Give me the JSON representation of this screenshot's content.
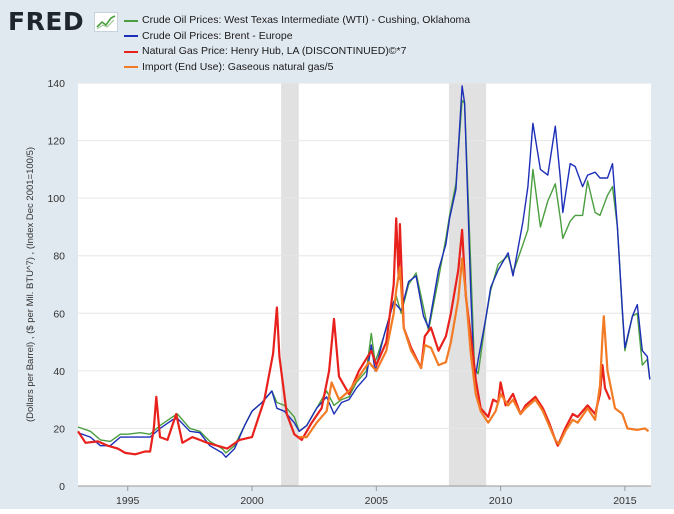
{
  "branding": {
    "logo_text": "FRED",
    "logo_mark_icon": "chart-trend-icon"
  },
  "colors": {
    "frame_bg": "#e1e9f0",
    "plot_bg": "#ffffff",
    "recession": "#e1e1e1",
    "grid": "#e6e6e6",
    "wti": "#4a9e3f",
    "brent": "#1d2fb8",
    "henry_hub": "#e8211c",
    "import_gas": "#f37b25"
  },
  "chart_data": {
    "type": "line",
    "title": "",
    "xlabel": "",
    "ylabel": "(Dollars per Barrel) , ($ per Mil. BTU^7) , (Index Dec 2001=100/5)",
    "xlim": [
      1993.0,
      2016.05
    ],
    "ylim": [
      0,
      140
    ],
    "y_ticks": [
      "0",
      "20",
      "40",
      "60",
      "80",
      "100",
      "120",
      "140"
    ],
    "y_tick_values": [
      0,
      20,
      40,
      60,
      80,
      100,
      120,
      140
    ],
    "x_ticks": [
      "1995",
      "2000",
      "2005",
      "2010",
      "2015"
    ],
    "x_tick_values": [
      1995,
      2000,
      2005,
      2010,
      2015
    ],
    "grid": true,
    "legend_position": "top",
    "recessions": [
      {
        "start": 2001.17,
        "end": 2001.88
      },
      {
        "start": 2007.92,
        "end": 2009.42
      }
    ],
    "series": [
      {
        "name": "Crude Oil Prices: West Texas Intermediate (WTI) - Cushing, Oklahoma",
        "color": "#4a9e3f",
        "points": [
          [
            1993.0,
            20.5
          ],
          [
            1993.5,
            19
          ],
          [
            1993.9,
            16
          ],
          [
            1994.3,
            15.5
          ],
          [
            1994.7,
            18
          ],
          [
            1995.0,
            18
          ],
          [
            1995.5,
            18.5
          ],
          [
            1995.9,
            18
          ],
          [
            1996.3,
            21
          ],
          [
            1996.8,
            24
          ],
          [
            1997.0,
            25
          ],
          [
            1997.5,
            20
          ],
          [
            1997.9,
            19
          ],
          [
            1998.3,
            15.5
          ],
          [
            1998.8,
            13
          ],
          [
            1998.95,
            11.5
          ],
          [
            1999.3,
            14
          ],
          [
            1999.7,
            21
          ],
          [
            2000.0,
            26
          ],
          [
            2000.4,
            29
          ],
          [
            2000.8,
            33
          ],
          [
            2001.0,
            29
          ],
          [
            2001.3,
            28
          ],
          [
            2001.7,
            24
          ],
          [
            2001.9,
            19
          ],
          [
            2002.2,
            21
          ],
          [
            2002.6,
            27
          ],
          [
            2003.0,
            33
          ],
          [
            2003.3,
            28
          ],
          [
            2003.6,
            30
          ],
          [
            2003.9,
            31
          ],
          [
            2004.2,
            36
          ],
          [
            2004.6,
            40
          ],
          [
            2004.8,
            53
          ],
          [
            2004.95,
            43
          ],
          [
            2005.3,
            52
          ],
          [
            2005.7,
            64
          ],
          [
            2005.8,
            66
          ],
          [
            2006.0,
            60
          ],
          [
            2006.3,
            70
          ],
          [
            2006.6,
            74
          ],
          [
            2006.9,
            62
          ],
          [
            2007.1,
            54
          ],
          [
            2007.5,
            72
          ],
          [
            2007.8,
            86
          ],
          [
            2007.95,
            94
          ],
          [
            2008.2,
            105
          ],
          [
            2008.45,
            134
          ],
          [
            2008.55,
            133
          ],
          [
            2008.8,
            76
          ],
          [
            2008.95,
            41
          ],
          [
            2009.1,
            39
          ],
          [
            2009.4,
            58
          ],
          [
            2009.6,
            68
          ],
          [
            2009.9,
            77
          ],
          [
            2010.3,
            80
          ],
          [
            2010.5,
            74
          ],
          [
            2010.9,
            84
          ],
          [
            2011.1,
            89
          ],
          [
            2011.3,
            110
          ],
          [
            2011.6,
            90
          ],
          [
            2011.9,
            99
          ],
          [
            2012.2,
            105
          ],
          [
            2012.4,
            93
          ],
          [
            2012.5,
            86
          ],
          [
            2012.8,
            92
          ],
          [
            2013.0,
            94
          ],
          [
            2013.3,
            94
          ],
          [
            2013.5,
            106
          ],
          [
            2013.8,
            95
          ],
          [
            2014.0,
            94
          ],
          [
            2014.3,
            101
          ],
          [
            2014.5,
            104
          ],
          [
            2014.7,
            90
          ],
          [
            2014.9,
            60
          ],
          [
            2015.0,
            47
          ],
          [
            2015.3,
            59
          ],
          [
            2015.5,
            60
          ],
          [
            2015.7,
            42
          ],
          [
            2015.9,
            44
          ],
          [
            2016.0,
            37
          ]
        ]
      },
      {
        "name": "Crude Oil Prices: Brent - Europe",
        "color": "#1d2fb8",
        "points": [
          [
            1993.0,
            18.5
          ],
          [
            1993.5,
            17
          ],
          [
            1993.9,
            14
          ],
          [
            1994.3,
            14
          ],
          [
            1994.7,
            17
          ],
          [
            1995.0,
            17
          ],
          [
            1995.5,
            17
          ],
          [
            1995.9,
            17
          ],
          [
            1996.3,
            20
          ],
          [
            1996.8,
            23
          ],
          [
            1997.0,
            23.5
          ],
          [
            1997.5,
            19
          ],
          [
            1997.9,
            18.5
          ],
          [
            1998.3,
            14
          ],
          [
            1998.8,
            11.5
          ],
          [
            1998.95,
            10
          ],
          [
            1999.3,
            13
          ],
          [
            1999.7,
            21
          ],
          [
            2000.0,
            26
          ],
          [
            2000.4,
            29
          ],
          [
            2000.8,
            33
          ],
          [
            2001.0,
            27
          ],
          [
            2001.3,
            26
          ],
          [
            2001.7,
            22
          ],
          [
            2001.9,
            19
          ],
          [
            2002.2,
            21
          ],
          [
            2002.6,
            27
          ],
          [
            2003.0,
            31
          ],
          [
            2003.3,
            25
          ],
          [
            2003.6,
            29
          ],
          [
            2003.9,
            30
          ],
          [
            2004.2,
            34
          ],
          [
            2004.6,
            38
          ],
          [
            2004.8,
            49
          ],
          [
            2004.95,
            40
          ],
          [
            2005.3,
            52
          ],
          [
            2005.7,
            64
          ],
          [
            2005.8,
            63
          ],
          [
            2006.0,
            61
          ],
          [
            2006.3,
            71
          ],
          [
            2006.6,
            73
          ],
          [
            2006.9,
            59
          ],
          [
            2007.1,
            55
          ],
          [
            2007.5,
            75
          ],
          [
            2007.8,
            84
          ],
          [
            2007.95,
            93
          ],
          [
            2008.2,
            103
          ],
          [
            2008.45,
            139
          ],
          [
            2008.55,
            133
          ],
          [
            2008.8,
            67
          ],
          [
            2008.95,
            36
          ],
          [
            2009.1,
            44
          ],
          [
            2009.4,
            58
          ],
          [
            2009.6,
            69
          ],
          [
            2009.9,
            75
          ],
          [
            2010.3,
            81
          ],
          [
            2010.5,
            73
          ],
          [
            2010.9,
            92
          ],
          [
            2011.1,
            104
          ],
          [
            2011.3,
            126
          ],
          [
            2011.6,
            110
          ],
          [
            2011.9,
            108
          ],
          [
            2012.2,
            125
          ],
          [
            2012.4,
            107
          ],
          [
            2012.5,
            95
          ],
          [
            2012.8,
            112
          ],
          [
            2013.0,
            111
          ],
          [
            2013.3,
            104
          ],
          [
            2013.5,
            108
          ],
          [
            2013.8,
            109
          ],
          [
            2014.0,
            107
          ],
          [
            2014.3,
            107
          ],
          [
            2014.5,
            112
          ],
          [
            2014.7,
            90
          ],
          [
            2014.9,
            61
          ],
          [
            2015.0,
            48
          ],
          [
            2015.3,
            59
          ],
          [
            2015.5,
            63
          ],
          [
            2015.7,
            47
          ],
          [
            2015.9,
            45
          ],
          [
            2016.0,
            37
          ]
        ]
      },
      {
        "name": "Natural Gas Price: Henry Hub, LA (DISCONTINUED)©*7",
        "color": "#e8211c",
        "points": [
          [
            1993.0,
            19
          ],
          [
            1993.3,
            15
          ],
          [
            1993.8,
            15.5
          ],
          [
            1994.2,
            14
          ],
          [
            1994.6,
            13
          ],
          [
            1994.9,
            11.5
          ],
          [
            1995.3,
            11
          ],
          [
            1995.7,
            12
          ],
          [
            1995.9,
            12
          ],
          [
            1996.05,
            20
          ],
          [
            1996.15,
            31
          ],
          [
            1996.3,
            17
          ],
          [
            1996.6,
            16
          ],
          [
            1996.95,
            25
          ],
          [
            1997.2,
            15
          ],
          [
            1997.6,
            17
          ],
          [
            1997.9,
            16
          ],
          [
            1998.2,
            15
          ],
          [
            1998.6,
            14
          ],
          [
            1999.0,
            13
          ],
          [
            1999.5,
            16
          ],
          [
            2000.0,
            17
          ],
          [
            2000.5,
            30
          ],
          [
            2000.85,
            46
          ],
          [
            2001.0,
            62
          ],
          [
            2001.1,
            45
          ],
          [
            2001.4,
            25
          ],
          [
            2001.7,
            18
          ],
          [
            2002.0,
            16
          ],
          [
            2002.4,
            22
          ],
          [
            2002.8,
            27
          ],
          [
            2003.1,
            40
          ],
          [
            2003.3,
            58
          ],
          [
            2003.5,
            38
          ],
          [
            2003.9,
            32
          ],
          [
            2004.3,
            40
          ],
          [
            2004.8,
            47
          ],
          [
            2005.0,
            42
          ],
          [
            2005.4,
            50
          ],
          [
            2005.7,
            70
          ],
          [
            2005.8,
            93
          ],
          [
            2005.9,
            72
          ],
          [
            2005.95,
            91
          ],
          [
            2006.1,
            55
          ],
          [
            2006.4,
            48
          ],
          [
            2006.8,
            41
          ],
          [
            2006.95,
            52
          ],
          [
            2007.2,
            55
          ],
          [
            2007.5,
            47
          ],
          [
            2007.8,
            52
          ],
          [
            2008.0,
            60
          ],
          [
            2008.3,
            75
          ],
          [
            2008.45,
            89
          ],
          [
            2008.6,
            66
          ],
          [
            2008.9,
            45
          ],
          [
            2009.0,
            37
          ],
          [
            2009.2,
            27
          ],
          [
            2009.5,
            24
          ],
          [
            2009.7,
            30
          ],
          [
            2009.9,
            29
          ],
          [
            2010.0,
            36
          ],
          [
            2010.2,
            28
          ],
          [
            2010.5,
            32
          ],
          [
            2010.8,
            25
          ],
          [
            2011.0,
            28
          ],
          [
            2011.4,
            31
          ],
          [
            2011.7,
            27
          ],
          [
            2011.95,
            22
          ],
          [
            2012.2,
            16
          ],
          [
            2012.3,
            14
          ],
          [
            2012.6,
            20
          ],
          [
            2012.9,
            25
          ],
          [
            2013.1,
            24
          ],
          [
            2013.5,
            28
          ],
          [
            2013.8,
            25
          ],
          [
            2014.0,
            32
          ],
          [
            2014.1,
            42
          ],
          [
            2014.2,
            34
          ],
          [
            2014.4,
            30
          ]
        ]
      },
      {
        "name": "Import (End Use): Gaseous natural gas/5",
        "color": "#f37b25",
        "points": [
          [
            2001.9,
            17
          ],
          [
            2002.2,
            17
          ],
          [
            2002.6,
            22
          ],
          [
            2003.0,
            26
          ],
          [
            2003.2,
            36
          ],
          [
            2003.5,
            30
          ],
          [
            2003.9,
            33
          ],
          [
            2004.3,
            38
          ],
          [
            2004.7,
            43
          ],
          [
            2005.0,
            40
          ],
          [
            2005.4,
            47
          ],
          [
            2005.7,
            60
          ],
          [
            2005.8,
            68
          ],
          [
            2005.95,
            76
          ],
          [
            2006.1,
            55
          ],
          [
            2006.4,
            47
          ],
          [
            2006.8,
            41
          ],
          [
            2006.95,
            49
          ],
          [
            2007.2,
            48
          ],
          [
            2007.5,
            42
          ],
          [
            2007.8,
            43
          ],
          [
            2008.0,
            50
          ],
          [
            2008.3,
            65
          ],
          [
            2008.45,
            79
          ],
          [
            2008.6,
            67
          ],
          [
            2008.8,
            46
          ],
          [
            2009.0,
            32
          ],
          [
            2009.2,
            26
          ],
          [
            2009.5,
            22
          ],
          [
            2009.8,
            26
          ],
          [
            2010.0,
            32
          ],
          [
            2010.3,
            28
          ],
          [
            2010.5,
            30
          ],
          [
            2010.8,
            25
          ],
          [
            2011.0,
            27
          ],
          [
            2011.4,
            30
          ],
          [
            2011.7,
            26
          ],
          [
            2011.95,
            21
          ],
          [
            2012.2,
            16
          ],
          [
            2012.35,
            14.5
          ],
          [
            2012.6,
            19
          ],
          [
            2012.9,
            23
          ],
          [
            2013.1,
            22
          ],
          [
            2013.5,
            27
          ],
          [
            2013.8,
            23
          ],
          [
            2014.0,
            35
          ],
          [
            2014.1,
            52
          ],
          [
            2014.15,
            59
          ],
          [
            2014.3,
            40
          ],
          [
            2014.6,
            27
          ],
          [
            2014.9,
            25
          ],
          [
            2015.1,
            20
          ],
          [
            2015.5,
            19.5
          ],
          [
            2015.8,
            20
          ],
          [
            2015.95,
            19
          ]
        ]
      }
    ]
  }
}
